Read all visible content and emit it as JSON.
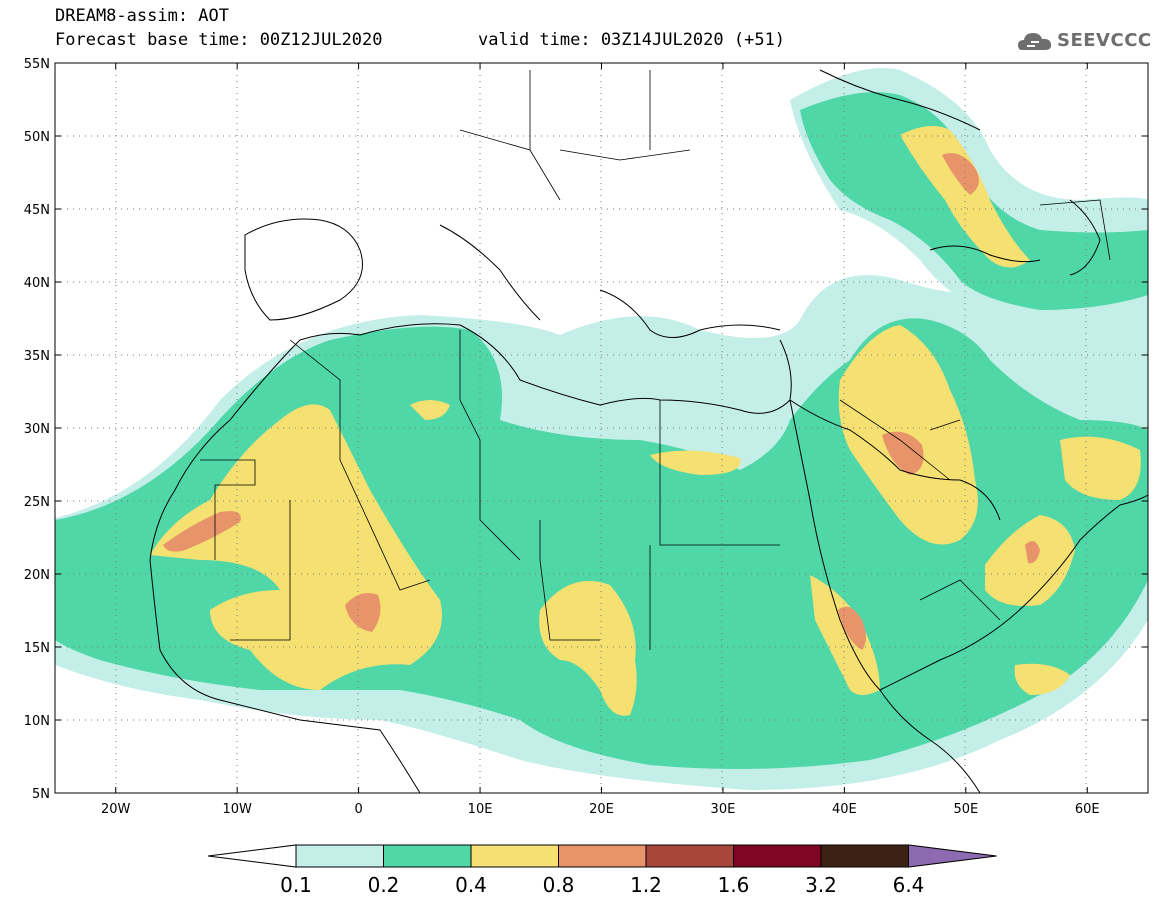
{
  "header": {
    "title": "DREAM8-assim: AOT",
    "base_time": "Forecast base time: 00Z12JUL2020",
    "valid_time": "valid time: 03Z14JUL2020 (+51)"
  },
  "logo": {
    "text": "SEEVCCC",
    "icon": "cloud-icon"
  },
  "map": {
    "lat_labels": [
      "55N",
      "50N",
      "45N",
      "40N",
      "35N",
      "30N",
      "25N",
      "20N",
      "15N",
      "10N",
      "5N"
    ],
    "lon_labels": [
      "20W",
      "10W",
      "0",
      "10E",
      "20E",
      "30E",
      "40E",
      "50E",
      "60E"
    ],
    "lon_range": [
      -25,
      65
    ],
    "lat_range": [
      5,
      55
    ]
  },
  "colorbar": {
    "labels": [
      "0.1",
      "0.2",
      "0.4",
      "0.8",
      "1.2",
      "1.6",
      "3.2",
      "6.4"
    ],
    "colors": [
      "#ffffff",
      "#c4eee8",
      "#4fd7a8",
      "#f5e072",
      "#e8946a",
      "#a8463c",
      "#7e0523",
      "#3b2215",
      "#8e6bb0"
    ]
  }
}
